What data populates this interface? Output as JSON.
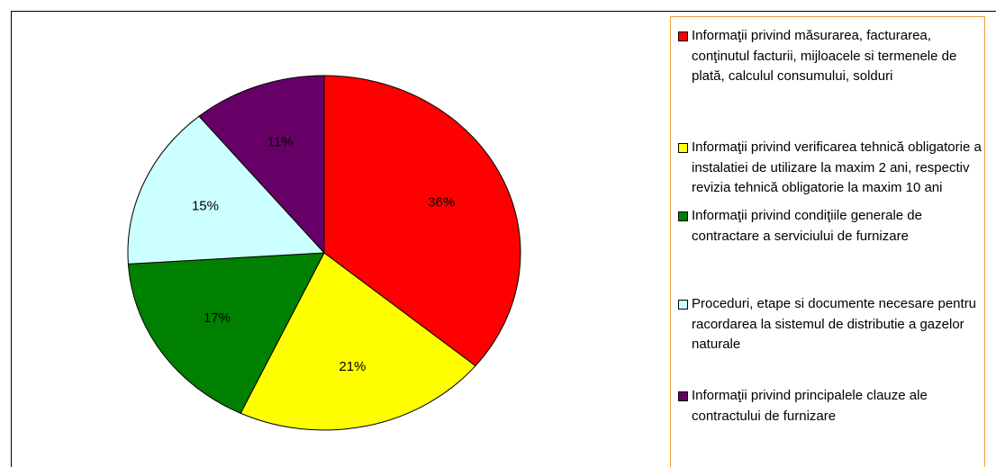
{
  "chart_data": {
    "type": "pie",
    "categories": [
      "Informaţii privind măsurarea, facturarea, conţinutul facturii, mijloacele si termenele de plată, calculul consumului, solduri",
      "Informaţii privind verificarea tehnică obligatorie a instalatiei de utilizare la maxim 2 ani, respectiv revizia tehnică obligatorie la maxim 10 ani",
      "Informaţii privind condiţiile generale de contractare a serviciului de furnizare",
      "Proceduri, etape si documente necesare pentru racordarea la sistemul de distributie a gazelor naturale",
      "Informaţii privind principalele clauze ale contractului de furnizare"
    ],
    "values": [
      36,
      21,
      17,
      15,
      11
    ],
    "value_labels": [
      "36%",
      "21%",
      "17%",
      "15%",
      "11%"
    ],
    "colors": [
      "#ff0000",
      "#ffff00",
      "#008000",
      "#ccffff",
      "#660066"
    ],
    "legend": "right"
  }
}
